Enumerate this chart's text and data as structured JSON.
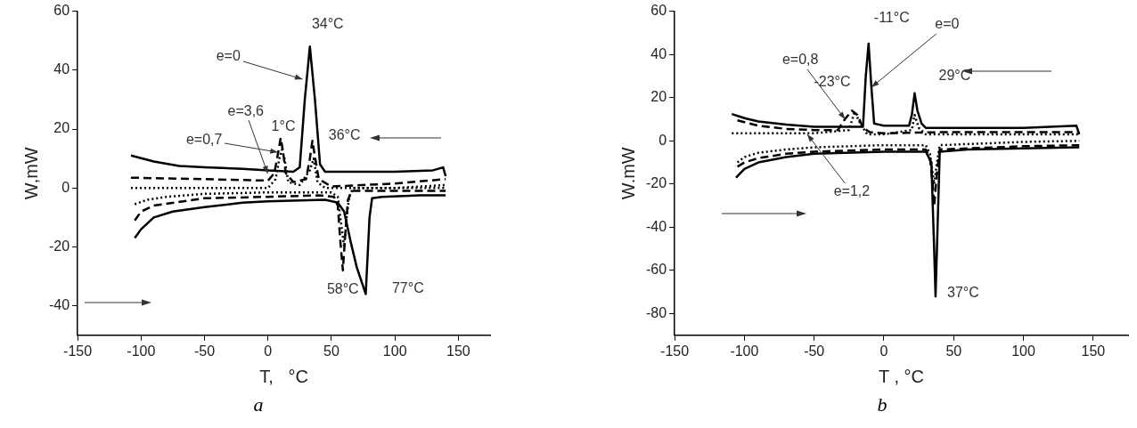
{
  "chart_data": [
    {
      "type": "line",
      "xlabel": "T,   °C",
      "ylabel": "W,mW",
      "xlim": [
        -150,
        175
      ],
      "xticks": [
        -150,
        -100,
        -50,
        0,
        50,
        100,
        150
      ],
      "ylim": [
        -50,
        60
      ],
      "yticks": [
        -40,
        -20,
        0,
        20,
        40,
        60
      ],
      "marker": "none",
      "series": [
        {
          "color": "#000000",
          "line_style": "solid",
          "x": [
            -108,
            -90,
            -70,
            -50,
            -20,
            0,
            20,
            25,
            29,
            33,
            37,
            41,
            45,
            60,
            100,
            130,
            138,
            140
          ],
          "values": [
            11,
            9,
            7.5,
            7,
            6.5,
            6,
            5.5,
            7,
            30,
            48,
            30,
            8,
            5.5,
            5.5,
            5.5,
            6,
            7,
            4
          ]
        },
        {
          "color": "#000000",
          "line_style": "solid",
          "x": [
            -105,
            -100,
            -90,
            -75,
            -50,
            -20,
            0,
            45,
            55,
            60,
            65,
            70,
            77,
            80,
            82,
            90,
            120,
            140
          ],
          "values": [
            -17,
            -14,
            -10,
            -8,
            -6.5,
            -5,
            -4.5,
            -4,
            -5,
            -8,
            -18,
            -27,
            -36,
            -10,
            -3.5,
            -3,
            -2.5,
            -2.5
          ]
        },
        {
          "color": "#000000",
          "line_style": "dashed",
          "x": [
            -108,
            -50,
            0,
            5,
            8,
            10,
            12,
            14,
            20,
            30,
            33,
            35,
            38,
            40,
            50,
            100,
            140
          ],
          "values": [
            3.5,
            3,
            2.5,
            5,
            12,
            17,
            12,
            5,
            2,
            3,
            10,
            16,
            8,
            3,
            0.5,
            1.5,
            3
          ]
        },
        {
          "color": "#000000",
          "line_style": "dotted",
          "x": [
            -108,
            -50,
            0,
            6,
            9,
            11,
            13,
            16,
            25,
            33,
            36,
            39,
            45,
            100,
            140
          ],
          "values": [
            0,
            0,
            0,
            3,
            10,
            13,
            10,
            2,
            1,
            6,
            10,
            2,
            0,
            0,
            1
          ]
        },
        {
          "color": "#000000",
          "line_style": "dashed",
          "x": [
            -105,
            -100,
            -90,
            -50,
            0,
            40,
            52,
            55,
            57,
            59,
            61,
            63,
            66,
            100,
            140
          ],
          "values": [
            -11,
            -8,
            -6,
            -3.5,
            -3,
            -2.5,
            -3,
            -6,
            -18,
            -28,
            -15,
            -4,
            -1,
            -1,
            -1
          ]
        },
        {
          "color": "#000000",
          "line_style": "dotted",
          "x": [
            -105,
            -95,
            -80,
            -50,
            0,
            50,
            55,
            57,
            60,
            62,
            64,
            67,
            100,
            140
          ],
          "values": [
            -5.5,
            -4,
            -3,
            -2,
            -1.5,
            -1.5,
            -3,
            -10,
            -20,
            -10,
            -3,
            0,
            0,
            0
          ]
        }
      ],
      "annotations": [
        {
          "text": "34°C",
          "x": 33,
          "y": 48
        },
        {
          "text": "e=0",
          "x": 27,
          "y": 37
        },
        {
          "text": "e=3,6",
          "x": 0,
          "y": 4.8
        },
        {
          "text": "1°C",
          "x": 10,
          "y": 17
        },
        {
          "text": "e=0,7",
          "x": 8,
          "y": 12
        },
        {
          "text": "36°C",
          "x": 35,
          "y": 17
        },
        {
          "text": "58°C",
          "x": 59,
          "y": -28
        },
        {
          "text": "77°C",
          "x": 78,
          "y": -36
        },
        "a"
      ]
    },
    {
      "type": "line",
      "xlabel": "T , °C",
      "ylabel": "W.mW",
      "xlim": [
        -150,
        175
      ],
      "xticks": [
        -150,
        -100,
        -50,
        0,
        50,
        100,
        150
      ],
      "ylim": [
        -90,
        60
      ],
      "yticks": [
        -80,
        -60,
        -40,
        -20,
        0,
        20,
        40,
        60
      ],
      "marker": "none",
      "series": [
        {
          "color": "#000000",
          "line_style": "solid",
          "x": [
            -109,
            -100,
            -90,
            -70,
            -50,
            -15,
            -13,
            -11,
            -9,
            -7,
            0,
            18,
            20,
            22,
            24,
            27,
            30,
            60,
            100,
            138,
            140
          ],
          "values": [
            12.4,
            10.5,
            9,
            7.5,
            6.5,
            6.5,
            30,
            45,
            25,
            8,
            7,
            7,
            12,
            22,
            14,
            8,
            6,
            6,
            6,
            7,
            3
          ]
        },
        {
          "color": "#000000",
          "line_style": "solid",
          "x": [
            -106,
            -100,
            -90,
            -70,
            -50,
            0,
            30,
            34,
            36,
            37,
            38,
            40,
            60,
            100,
            140
          ],
          "values": [
            -17,
            -13,
            -10,
            -7.5,
            -6,
            -5,
            -5,
            -10,
            -50,
            -72,
            -50,
            -5,
            -4,
            -3.5,
            -3
          ]
        },
        {
          "color": "#000000",
          "line_style": "dashed",
          "x": [
            -105,
            -90,
            -70,
            -50,
            -33,
            -28,
            -23,
            -19,
            -15,
            -10,
            0,
            40,
            100,
            140
          ],
          "values": [
            9.5,
            7,
            5.5,
            5,
            5,
            10,
            14,
            12,
            6,
            4,
            3.5,
            4,
            4,
            4
          ]
        },
        {
          "color": "#000000",
          "line_style": "dotted",
          "x": [
            -109,
            -50,
            -25,
            -21,
            -17,
            -12,
            0,
            20,
            22,
            25,
            30,
            100,
            140
          ],
          "values": [
            3.5,
            3.5,
            5,
            13.5,
            8,
            3,
            3,
            5,
            12,
            6,
            3,
            3,
            3
          ]
        },
        {
          "color": "#000000",
          "line_style": "dashed",
          "x": [
            -105,
            -100,
            -90,
            -70,
            -50,
            0,
            30,
            33,
            35,
            36,
            38,
            40,
            100,
            140
          ],
          "values": [
            -12,
            -10,
            -8,
            -6,
            -5,
            -4,
            -4,
            -8,
            -20,
            -30,
            -15,
            -4,
            -2.5,
            -2
          ]
        },
        {
          "color": "#000000",
          "line_style": "dotted",
          "x": [
            -105,
            -100,
            -90,
            -70,
            -50,
            0,
            30,
            33,
            35,
            36,
            38,
            40,
            100,
            140
          ],
          "values": [
            -10,
            -7.5,
            -5.5,
            -4,
            -3,
            -2,
            -2,
            -6,
            -15,
            -20,
            -10,
            -2,
            -0.5,
            0
          ]
        }
      ],
      "annotations": [
        {
          "text": "-11°C",
          "x": -11,
          "y": 45
        },
        {
          "text": "e=0",
          "x": -9,
          "y": 25
        },
        {
          "text": "e=0,8",
          "x": -28,
          "y": 10
        },
        {
          "text": "-23°C",
          "x": -23,
          "y": 14
        },
        {
          "text": "29°C",
          "x": 22,
          "y": 22
        },
        {
          "text": "e=1,2",
          "x": -55,
          "y": 3
        },
        {
          "text": "37°C",
          "x": 37,
          "y": -72
        },
        "b"
      ]
    }
  ]
}
